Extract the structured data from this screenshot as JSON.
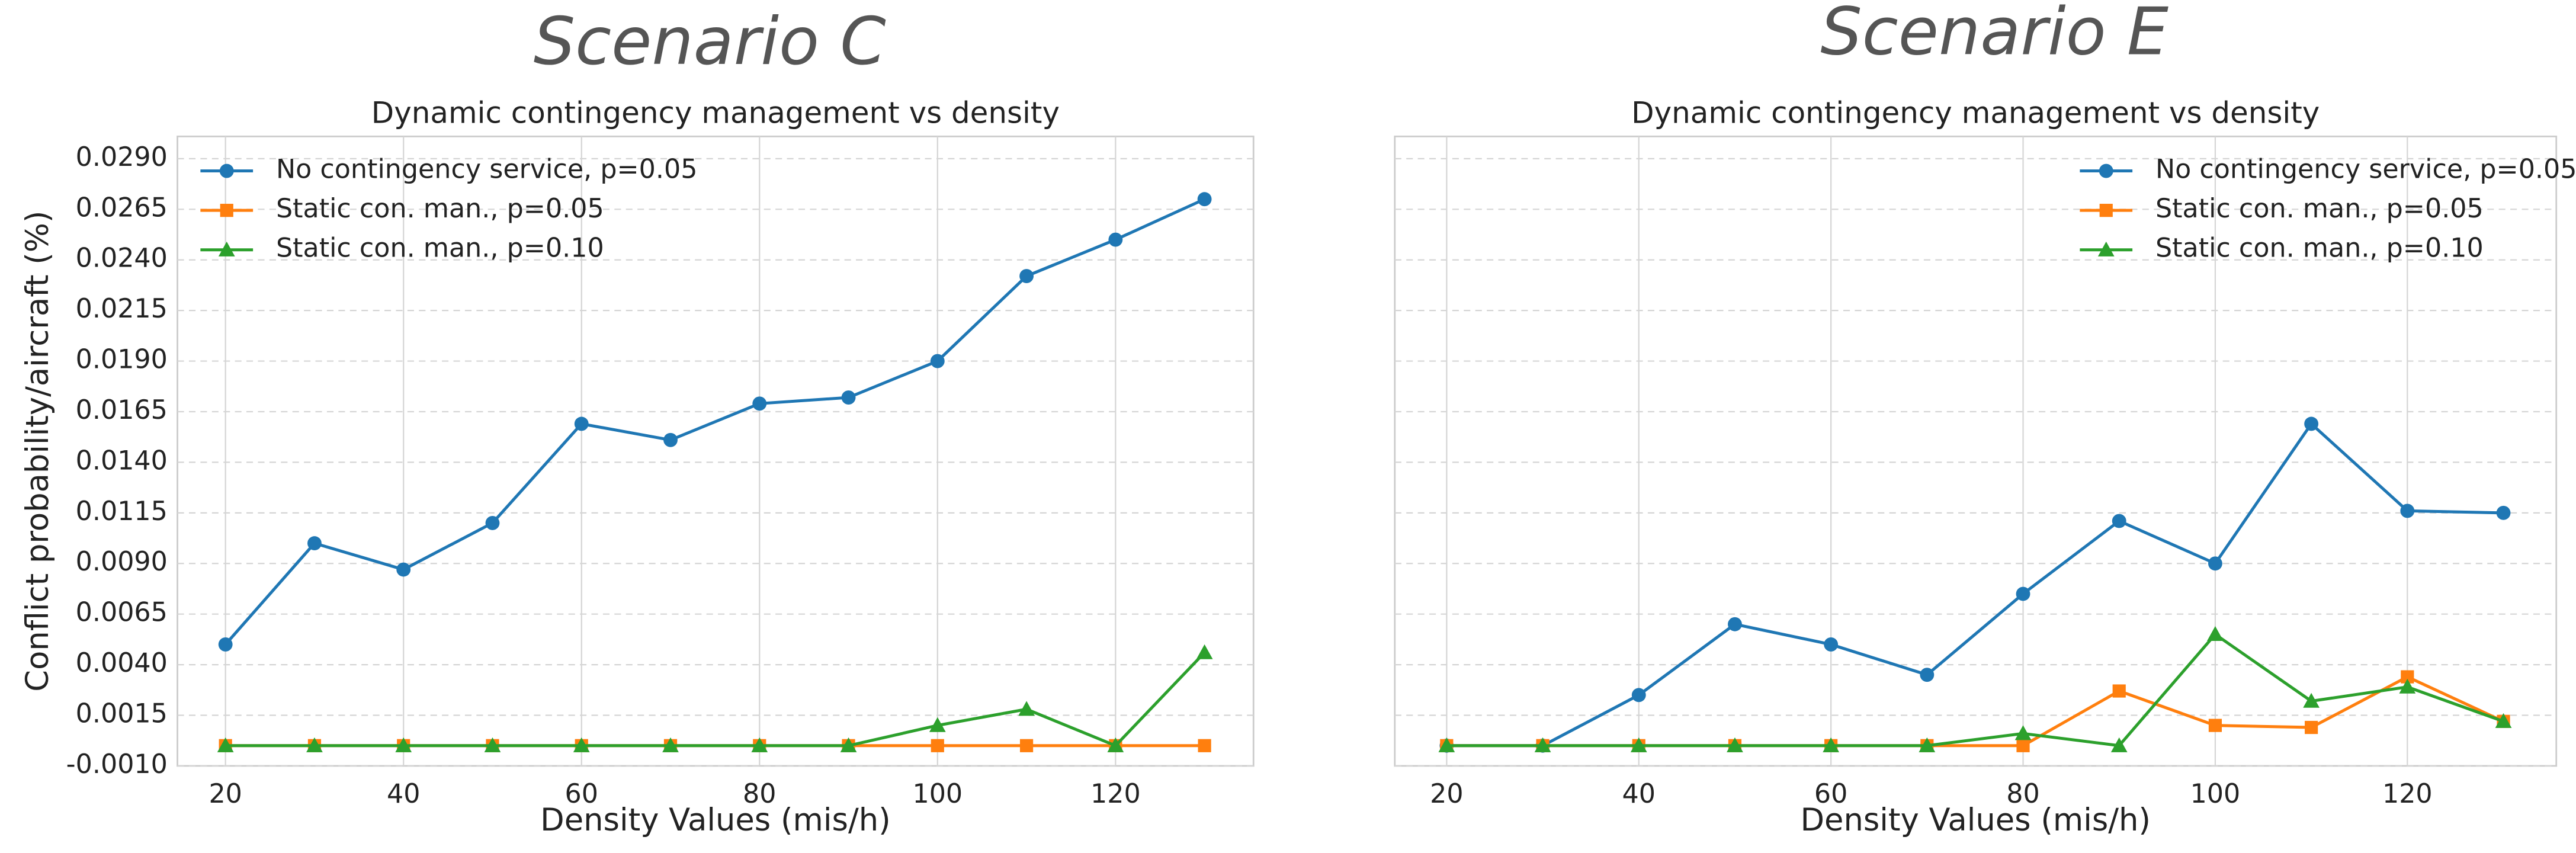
{
  "chart_data": [
    {
      "type": "line",
      "heading": "Scenario C",
      "title": "Dynamic contingency management vs density",
      "xlabel": "Density Values (mis/h)",
      "ylabel": "Conflict probability/aircraft (%)",
      "x": [
        20,
        30,
        40,
        50,
        60,
        70,
        80,
        90,
        100,
        110,
        120,
        130
      ],
      "series": [
        {
          "name": "No contingency service, p=0.05",
          "color": "#1f77b4",
          "marker": "circle",
          "values": [
            0.005,
            0.01,
            0.0087,
            0.011,
            0.0159,
            0.0151,
            0.0169,
            0.0172,
            0.019,
            0.0232,
            0.025,
            0.027
          ]
        },
        {
          "name": "Static con. man., p=0.05",
          "color": "#ff7f0e",
          "marker": "square",
          "values": [
            0,
            0,
            0,
            0,
            0,
            0,
            0,
            0,
            0,
            0,
            0,
            0
          ]
        },
        {
          "name": "Static con. man., p=0.10",
          "color": "#2ca02c",
          "marker": "triangle",
          "values": [
            0,
            0,
            0,
            0,
            0,
            0,
            0,
            0,
            0.001,
            0.0018,
            0,
            0.0046
          ]
        }
      ],
      "xlim": [
        14.6,
        135.5
      ],
      "ylim": [
        -0.001,
        0.0301
      ],
      "xticks": [
        20,
        40,
        60,
        80,
        100,
        120
      ],
      "yticks": [
        {
          "value": -0.001,
          "label": "-0.0010"
        },
        {
          "value": 0.0015,
          "label": "0.0015"
        },
        {
          "value": 0.004,
          "label": "0.0040"
        },
        {
          "value": 0.0065,
          "label": "0.0065"
        },
        {
          "value": 0.009,
          "label": "0.0090"
        },
        {
          "value": 0.0115,
          "label": "0.0115"
        },
        {
          "value": 0.014,
          "label": "0.0140"
        },
        {
          "value": 0.0165,
          "label": "0.0165"
        },
        {
          "value": 0.019,
          "label": "0.0190"
        },
        {
          "value": 0.0215,
          "label": "0.0215"
        },
        {
          "value": 0.024,
          "label": "0.0240"
        },
        {
          "value": 0.0265,
          "label": "0.0265"
        },
        {
          "value": 0.029,
          "label": "0.0290"
        }
      ],
      "grid": true,
      "legend": "upper left"
    },
    {
      "type": "line",
      "heading": "Scenario E",
      "title": "Dynamic contingency management vs density",
      "xlabel": "Density Values (mis/h)",
      "x": [
        20,
        30,
        40,
        50,
        60,
        70,
        80,
        90,
        100,
        110,
        120,
        130
      ],
      "series": [
        {
          "name": "No contingency service, p=0.05",
          "color": "#1f77b4",
          "marker": "circle",
          "values": [
            0,
            0,
            0.0025,
            0.006,
            0.005,
            0.0035,
            0.0075,
            0.0111,
            0.009,
            0.0159,
            0.0116,
            0.0115
          ]
        },
        {
          "name": "Static con. man., p=0.05",
          "color": "#ff7f0e",
          "marker": "square",
          "values": [
            0,
            0,
            0,
            0,
            0,
            0,
            0,
            0.0027,
            0.001,
            0.0009,
            0.0034,
            0.0012
          ]
        },
        {
          "name": "Static con. man., p=0.10",
          "color": "#2ca02c",
          "marker": "triangle",
          "values": [
            0,
            0,
            0,
            0,
            0,
            0,
            0.0006,
            0,
            0.0055,
            0.0022,
            0.0029,
            0.0012
          ]
        }
      ],
      "xlim": [
        14.6,
        135.5
      ],
      "ylim": [
        -0.001,
        0.0301
      ],
      "xticks": [
        20,
        40,
        60,
        80,
        100,
        120
      ],
      "yticks": [
        {
          "value": -0.001,
          "label": "-0.0010"
        },
        {
          "value": 0.0015,
          "label": "0.0015"
        },
        {
          "value": 0.004,
          "label": "0.0040"
        },
        {
          "value": 0.0065,
          "label": "0.0065"
        },
        {
          "value": 0.009,
          "label": "0.0090"
        },
        {
          "value": 0.0115,
          "label": "0.0115"
        },
        {
          "value": 0.014,
          "label": "0.0140"
        },
        {
          "value": 0.0165,
          "label": "0.0165"
        },
        {
          "value": 0.019,
          "label": "0.0190"
        },
        {
          "value": 0.0215,
          "label": "0.0215"
        },
        {
          "value": 0.024,
          "label": "0.0240"
        },
        {
          "value": 0.0265,
          "label": "0.0265"
        },
        {
          "value": 0.029,
          "label": "0.0290"
        }
      ],
      "grid": true,
      "legend": "upper right"
    }
  ]
}
